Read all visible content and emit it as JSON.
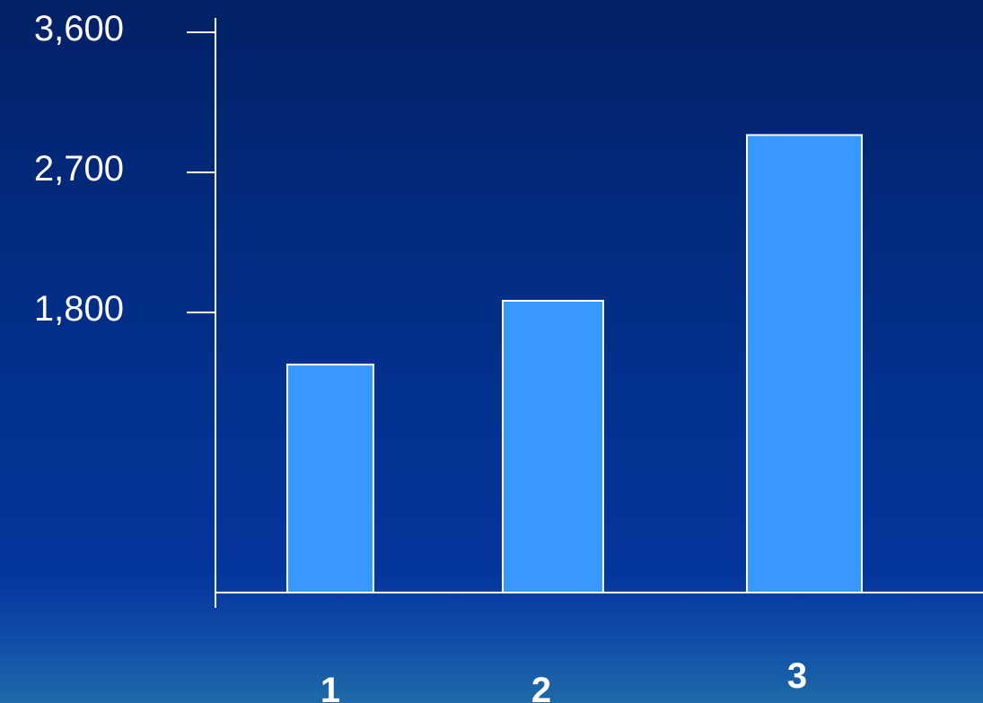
{
  "chart_data": {
    "type": "bar",
    "categories": [
      "1",
      "2",
      "3"
    ],
    "values": [
      1465,
      1875,
      2940
    ],
    "y_ticks": [
      1800,
      2700,
      3600
    ],
    "y_tick_labels": [
      "1,800",
      "2,700",
      "3,600"
    ],
    "ylim": [
      0,
      3600
    ],
    "title": "",
    "xlabel": "",
    "ylabel": "",
    "grid": false,
    "legend": "none",
    "bar_color": "#3a99ff",
    "axis_color": "#ffffff",
    "text_color": "#ffffff"
  }
}
